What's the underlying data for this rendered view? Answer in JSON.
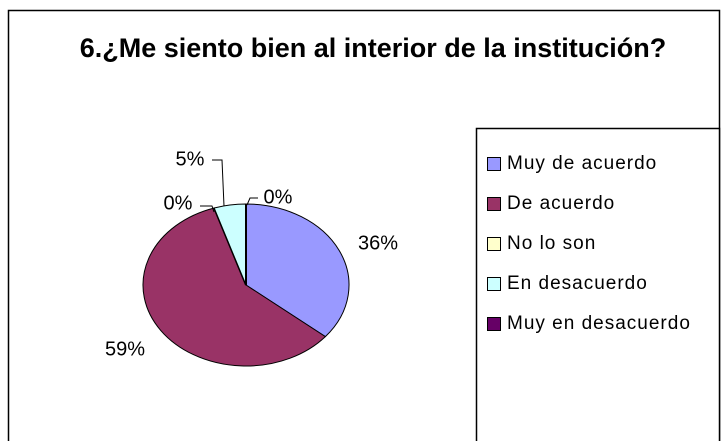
{
  "chart_data": {
    "type": "pie",
    "title": "6.¿Me siento bien al interior de la institución?",
    "categories": [
      "Muy de acuerdo",
      "De acuerdo",
      "No lo son",
      "En desacuerdo",
      "Muy en desacuerdo"
    ],
    "values": [
      36,
      59,
      0,
      5,
      0
    ],
    "value_labels": [
      "36%",
      "59%",
      "0%",
      "5%",
      "0%"
    ],
    "colors": [
      "#9999ff",
      "#993366",
      "#ffffcc",
      "#ccffff",
      "#660066"
    ],
    "legend": "right"
  }
}
